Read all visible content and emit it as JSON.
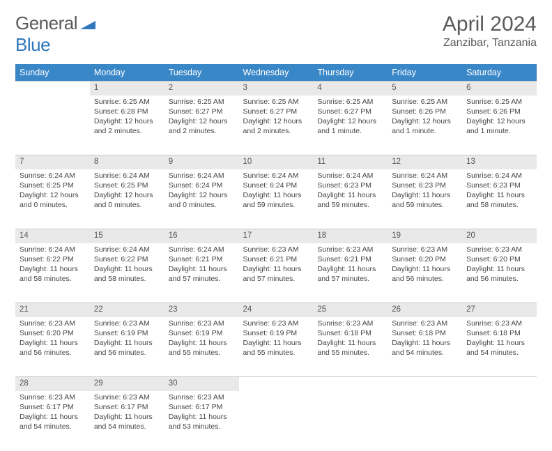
{
  "brand": {
    "word1": "General",
    "word2": "Blue"
  },
  "title": "April 2024",
  "location": "Zanzibar, Tanzania",
  "columns": [
    "Sunday",
    "Monday",
    "Tuesday",
    "Wednesday",
    "Thursday",
    "Friday",
    "Saturday"
  ],
  "colors": {
    "header_bg": "#3a87c8",
    "header_text": "#ffffff",
    "daynum_bg": "#e9e9e9",
    "text": "#444444",
    "brand_gray": "#5a5a5a",
    "brand_blue": "#2f77bb"
  },
  "layout": {
    "first_weekday_index": 1,
    "days_in_month": 30
  },
  "days": {
    "1": {
      "sunrise": "6:25 AM",
      "sunset": "6:28 PM",
      "daylight": "12 hours and 2 minutes."
    },
    "2": {
      "sunrise": "6:25 AM",
      "sunset": "6:27 PM",
      "daylight": "12 hours and 2 minutes."
    },
    "3": {
      "sunrise": "6:25 AM",
      "sunset": "6:27 PM",
      "daylight": "12 hours and 2 minutes."
    },
    "4": {
      "sunrise": "6:25 AM",
      "sunset": "6:27 PM",
      "daylight": "12 hours and 1 minute."
    },
    "5": {
      "sunrise": "6:25 AM",
      "sunset": "6:26 PM",
      "daylight": "12 hours and 1 minute."
    },
    "6": {
      "sunrise": "6:25 AM",
      "sunset": "6:26 PM",
      "daylight": "12 hours and 1 minute."
    },
    "7": {
      "sunrise": "6:24 AM",
      "sunset": "6:25 PM",
      "daylight": "12 hours and 0 minutes."
    },
    "8": {
      "sunrise": "6:24 AM",
      "sunset": "6:25 PM",
      "daylight": "12 hours and 0 minutes."
    },
    "9": {
      "sunrise": "6:24 AM",
      "sunset": "6:24 PM",
      "daylight": "12 hours and 0 minutes."
    },
    "10": {
      "sunrise": "6:24 AM",
      "sunset": "6:24 PM",
      "daylight": "11 hours and 59 minutes."
    },
    "11": {
      "sunrise": "6:24 AM",
      "sunset": "6:23 PM",
      "daylight": "11 hours and 59 minutes."
    },
    "12": {
      "sunrise": "6:24 AM",
      "sunset": "6:23 PM",
      "daylight": "11 hours and 59 minutes."
    },
    "13": {
      "sunrise": "6:24 AM",
      "sunset": "6:23 PM",
      "daylight": "11 hours and 58 minutes."
    },
    "14": {
      "sunrise": "6:24 AM",
      "sunset": "6:22 PM",
      "daylight": "11 hours and 58 minutes."
    },
    "15": {
      "sunrise": "6:24 AM",
      "sunset": "6:22 PM",
      "daylight": "11 hours and 58 minutes."
    },
    "16": {
      "sunrise": "6:24 AM",
      "sunset": "6:21 PM",
      "daylight": "11 hours and 57 minutes."
    },
    "17": {
      "sunrise": "6:23 AM",
      "sunset": "6:21 PM",
      "daylight": "11 hours and 57 minutes."
    },
    "18": {
      "sunrise": "6:23 AM",
      "sunset": "6:21 PM",
      "daylight": "11 hours and 57 minutes."
    },
    "19": {
      "sunrise": "6:23 AM",
      "sunset": "6:20 PM",
      "daylight": "11 hours and 56 minutes."
    },
    "20": {
      "sunrise": "6:23 AM",
      "sunset": "6:20 PM",
      "daylight": "11 hours and 56 minutes."
    },
    "21": {
      "sunrise": "6:23 AM",
      "sunset": "6:20 PM",
      "daylight": "11 hours and 56 minutes."
    },
    "22": {
      "sunrise": "6:23 AM",
      "sunset": "6:19 PM",
      "daylight": "11 hours and 56 minutes."
    },
    "23": {
      "sunrise": "6:23 AM",
      "sunset": "6:19 PM",
      "daylight": "11 hours and 55 minutes."
    },
    "24": {
      "sunrise": "6:23 AM",
      "sunset": "6:19 PM",
      "daylight": "11 hours and 55 minutes."
    },
    "25": {
      "sunrise": "6:23 AM",
      "sunset": "6:18 PM",
      "daylight": "11 hours and 55 minutes."
    },
    "26": {
      "sunrise": "6:23 AM",
      "sunset": "6:18 PM",
      "daylight": "11 hours and 54 minutes."
    },
    "27": {
      "sunrise": "6:23 AM",
      "sunset": "6:18 PM",
      "daylight": "11 hours and 54 minutes."
    },
    "28": {
      "sunrise": "6:23 AM",
      "sunset": "6:17 PM",
      "daylight": "11 hours and 54 minutes."
    },
    "29": {
      "sunrise": "6:23 AM",
      "sunset": "6:17 PM",
      "daylight": "11 hours and 54 minutes."
    },
    "30": {
      "sunrise": "6:23 AM",
      "sunset": "6:17 PM",
      "daylight": "11 hours and 53 minutes."
    }
  },
  "labels": {
    "sunrise": "Sunrise:",
    "sunset": "Sunset:",
    "daylight": "Daylight:"
  }
}
